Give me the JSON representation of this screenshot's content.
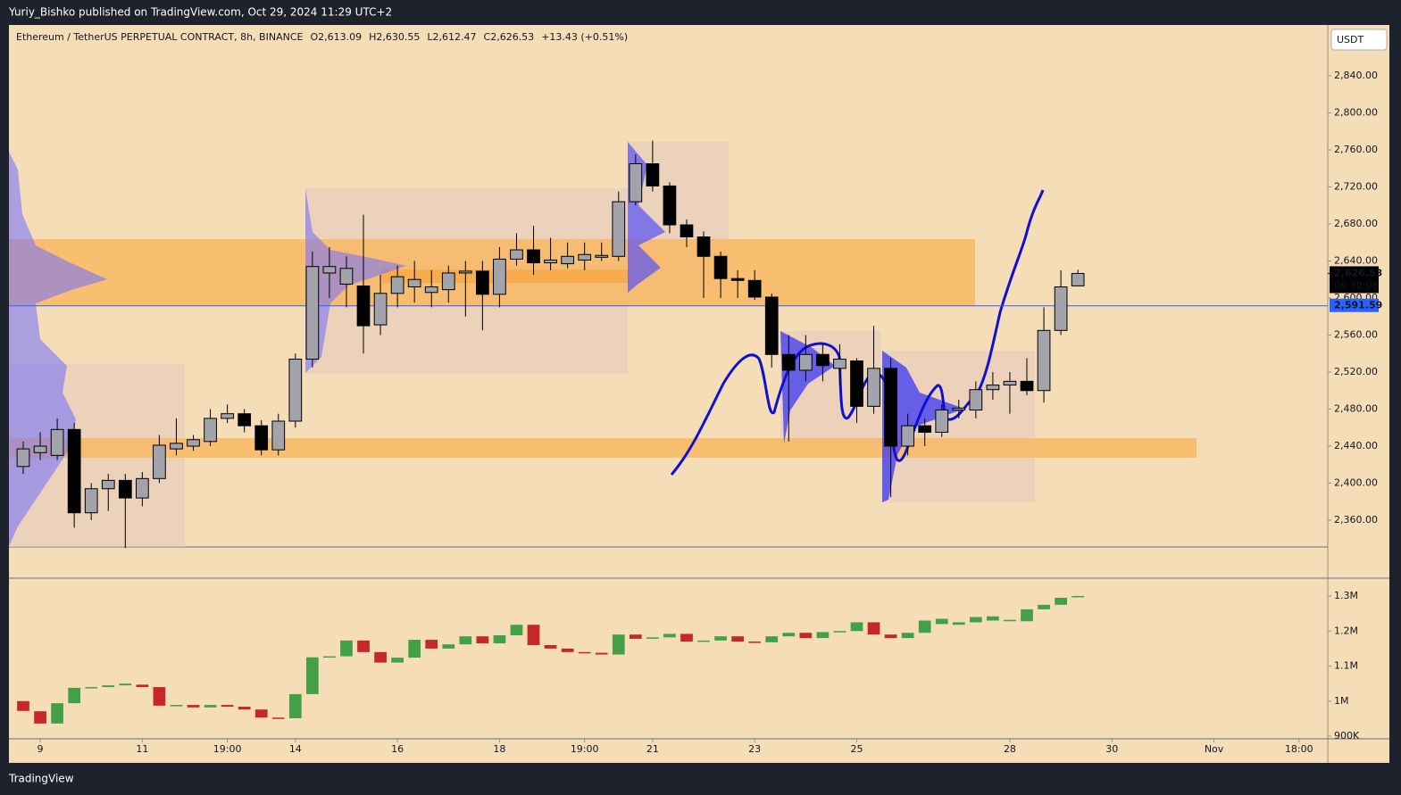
{
  "header": "Yuriy_Bishko published on TradingView.com, Oct 29, 2024 11:29 UTC+2",
  "footer": "TradingView",
  "currency": "USDT",
  "chart_data": {
    "type": "candlestick",
    "title": "Ethereum / TetherUS PERPETUAL CONTRACT, 8h, BINANCE",
    "legend": [
      "O2,613.09",
      "H2,630.55",
      "L2,612.47",
      "C2,626.53",
      "+13.43 (+0.51%)"
    ],
    "candles": {
      "open": [
        2418,
        2433,
        2430,
        2458,
        2368,
        2394,
        2403,
        2384,
        2405,
        2437,
        2440,
        2445,
        2470,
        2475,
        2462,
        2436,
        2467,
        2534,
        2627,
        2615,
        2613,
        2571,
        2605,
        2612,
        2606,
        2609,
        2627,
        2629,
        2604,
        2642,
        2652,
        2638,
        2637,
        2641,
        2644,
        2645,
        2704,
        2745,
        2721,
        2679,
        2666,
        2645,
        2621,
        2619,
        2601,
        2539,
        2522,
        2539,
        2524,
        2532,
        2483,
        2524,
        2440,
        2462,
        2455,
        2479,
        2479,
        2501,
        2506,
        2510,
        2500,
        2565,
        2613.09
      ],
      "high": [
        2445,
        2455,
        2470,
        2465,
        2400,
        2410,
        2410,
        2412,
        2452,
        2470,
        2452,
        2480,
        2485,
        2480,
        2468,
        2475,
        2540,
        2650,
        2655,
        2645,
        2690,
        2625,
        2635,
        2640,
        2630,
        2635,
        2640,
        2640,
        2655,
        2670,
        2678,
        2665,
        2660,
        2660,
        2660,
        2715,
        2755,
        2770,
        2725,
        2685,
        2672,
        2650,
        2630,
        2630,
        2605,
        2560,
        2560,
        2550,
        2550,
        2535,
        2570,
        2535,
        2475,
        2470,
        2485,
        2490,
        2510,
        2520,
        2520,
        2535,
        2590,
        2630,
        2630.55
      ],
      "low": [
        2410,
        2425,
        2425,
        2352,
        2360,
        2370,
        2330,
        2375,
        2400,
        2430,
        2435,
        2440,
        2465,
        2455,
        2430,
        2430,
        2460,
        2525,
        2600,
        2590,
        2540,
        2560,
        2590,
        2595,
        2590,
        2595,
        2580,
        2565,
        2590,
        2635,
        2625,
        2630,
        2632,
        2630,
        2640,
        2640,
        2700,
        2715,
        2670,
        2655,
        2600,
        2600,
        2600,
        2598,
        2525,
        2445,
        2510,
        2510,
        2505,
        2465,
        2475,
        2385,
        2430,
        2440,
        2450,
        2470,
        2470,
        2490,
        2475,
        2495,
        2487,
        2560,
        2612.47
      ],
      "close": [
        2437,
        2440,
        2458,
        2368,
        2394,
        2403,
        2384,
        2405,
        2441,
        2443,
        2447,
        2470,
        2475,
        2462,
        2436,
        2467,
        2534,
        2634,
        2634,
        2632,
        2570,
        2605,
        2623,
        2620,
        2612,
        2627,
        2629,
        2604,
        2642,
        2652,
        2638,
        2641,
        2645,
        2647,
        2646,
        2704,
        2745,
        2721,
        2679,
        2666,
        2645,
        2621,
        2619,
        2601,
        2539,
        2522,
        2539,
        2527,
        2534,
        2483,
        2524,
        2440,
        2462,
        2455,
        2479,
        2481,
        2501,
        2506,
        2510,
        2500,
        2565,
        2612,
        2626.53
      ]
    },
    "up_color": "#a3a3ab",
    "down_color": "#000000",
    "xlim": [
      -0.84,
      76.69
    ],
    "xticks": [
      {
        "value": 1,
        "label": "9"
      },
      {
        "value": 7,
        "label": "11"
      },
      {
        "value": 12,
        "label": "19:00"
      },
      {
        "value": 16,
        "label": "14"
      },
      {
        "value": 22,
        "label": "16"
      },
      {
        "value": 28,
        "label": "18"
      },
      {
        "value": 33,
        "label": "19:00"
      },
      {
        "value": 37,
        "label": "21"
      },
      {
        "value": 43,
        "label": "23"
      },
      {
        "value": 49,
        "label": "25"
      },
      {
        "value": 58,
        "label": "28"
      },
      {
        "value": 64,
        "label": "30"
      },
      {
        "value": 70,
        "label": "Nov"
      },
      {
        "value": 75,
        "label": "18:00"
      }
    ],
    "ylim": [
      2331.1,
      2894.9
    ],
    "yticks": [
      {
        "value": 2360,
        "label": "2,360.00"
      },
      {
        "value": 2400,
        "label": "2,400.00"
      },
      {
        "value": 2440,
        "label": "2,440.00"
      },
      {
        "value": 2480,
        "label": "2,480.00"
      },
      {
        "value": 2520,
        "label": "2,520.00"
      },
      {
        "value": 2560,
        "label": "2,560.00"
      },
      {
        "value": 2600,
        "label": "2,600.00"
      },
      {
        "value": 2640,
        "label": "2,640.00"
      },
      {
        "value": 2680,
        "label": "2,680.00"
      },
      {
        "value": 2720,
        "label": "2,720.00"
      },
      {
        "value": 2760,
        "label": "2,760.00"
      },
      {
        "value": 2800,
        "label": "2,800.00"
      },
      {
        "value": 2840,
        "label": "2,840.00"
      }
    ],
    "reference_line": {
      "value": 2591.59,
      "label": "2,591.59",
      "color": "#2962ff"
    },
    "last_price": {
      "value": 2626.53,
      "label": "2,626.53",
      "countdown": "06:30:06"
    },
    "volume": {
      "open": [
        1000000,
        971000,
        936000,
        994000,
        1038000,
        1040000,
        1045000,
        1047000,
        1040000,
        987000,
        989000,
        982000,
        989000,
        984000,
        976000,
        953000,
        951000,
        1020000,
        1125000,
        1128000,
        1173000,
        1140000,
        1110000,
        1124000,
        1175000,
        1150000,
        1162000,
        1185000,
        1165000,
        1188000,
        1218000,
        1160000,
        1150000,
        1140000,
        1138000,
        1133000,
        1190000,
        1178000,
        1182000,
        1192000,
        1170000,
        1173000,
        1185000,
        1170000,
        1168000,
        1185000,
        1195000,
        1180000,
        1197000,
        1200000,
        1225000,
        1190000,
        1180000,
        1195000,
        1220000,
        1218000,
        1225000,
        1230000,
        1228000,
        1228000,
        1262000,
        1275000,
        1297000
      ],
      "close": [
        972000,
        936000,
        994000,
        1038000,
        1040000,
        1045000,
        1050000,
        1040000,
        987000,
        989000,
        982000,
        989000,
        984000,
        976000,
        953000,
        951000,
        1020000,
        1125000,
        1128000,
        1173000,
        1140000,
        1110000,
        1124000,
        1175000,
        1150000,
        1162000,
        1185000,
        1165000,
        1188000,
        1218000,
        1160000,
        1150000,
        1140000,
        1138000,
        1133000,
        1190000,
        1178000,
        1182000,
        1192000,
        1170000,
        1173000,
        1185000,
        1170000,
        1168000,
        1185000,
        1195000,
        1180000,
        1197000,
        1200000,
        1225000,
        1190000,
        1180000,
        1195000,
        1230000,
        1235000,
        1225000,
        1240000,
        1242000,
        1232000,
        1262000,
        1275000,
        1295000,
        1300000
      ],
      "up_color": "#43a047",
      "down_color": "#c62828",
      "ylim": [
        892400,
        1351000
      ],
      "yticks": [
        {
          "value": 900000,
          "label": "900K"
        },
        {
          "value": 1000000,
          "label": "1M"
        },
        {
          "value": 1100000,
          "label": "1.1M"
        },
        {
          "value": 1200000,
          "label": "1.2M"
        },
        {
          "value": 1300000,
          "label": "1.3M"
        }
      ]
    }
  }
}
